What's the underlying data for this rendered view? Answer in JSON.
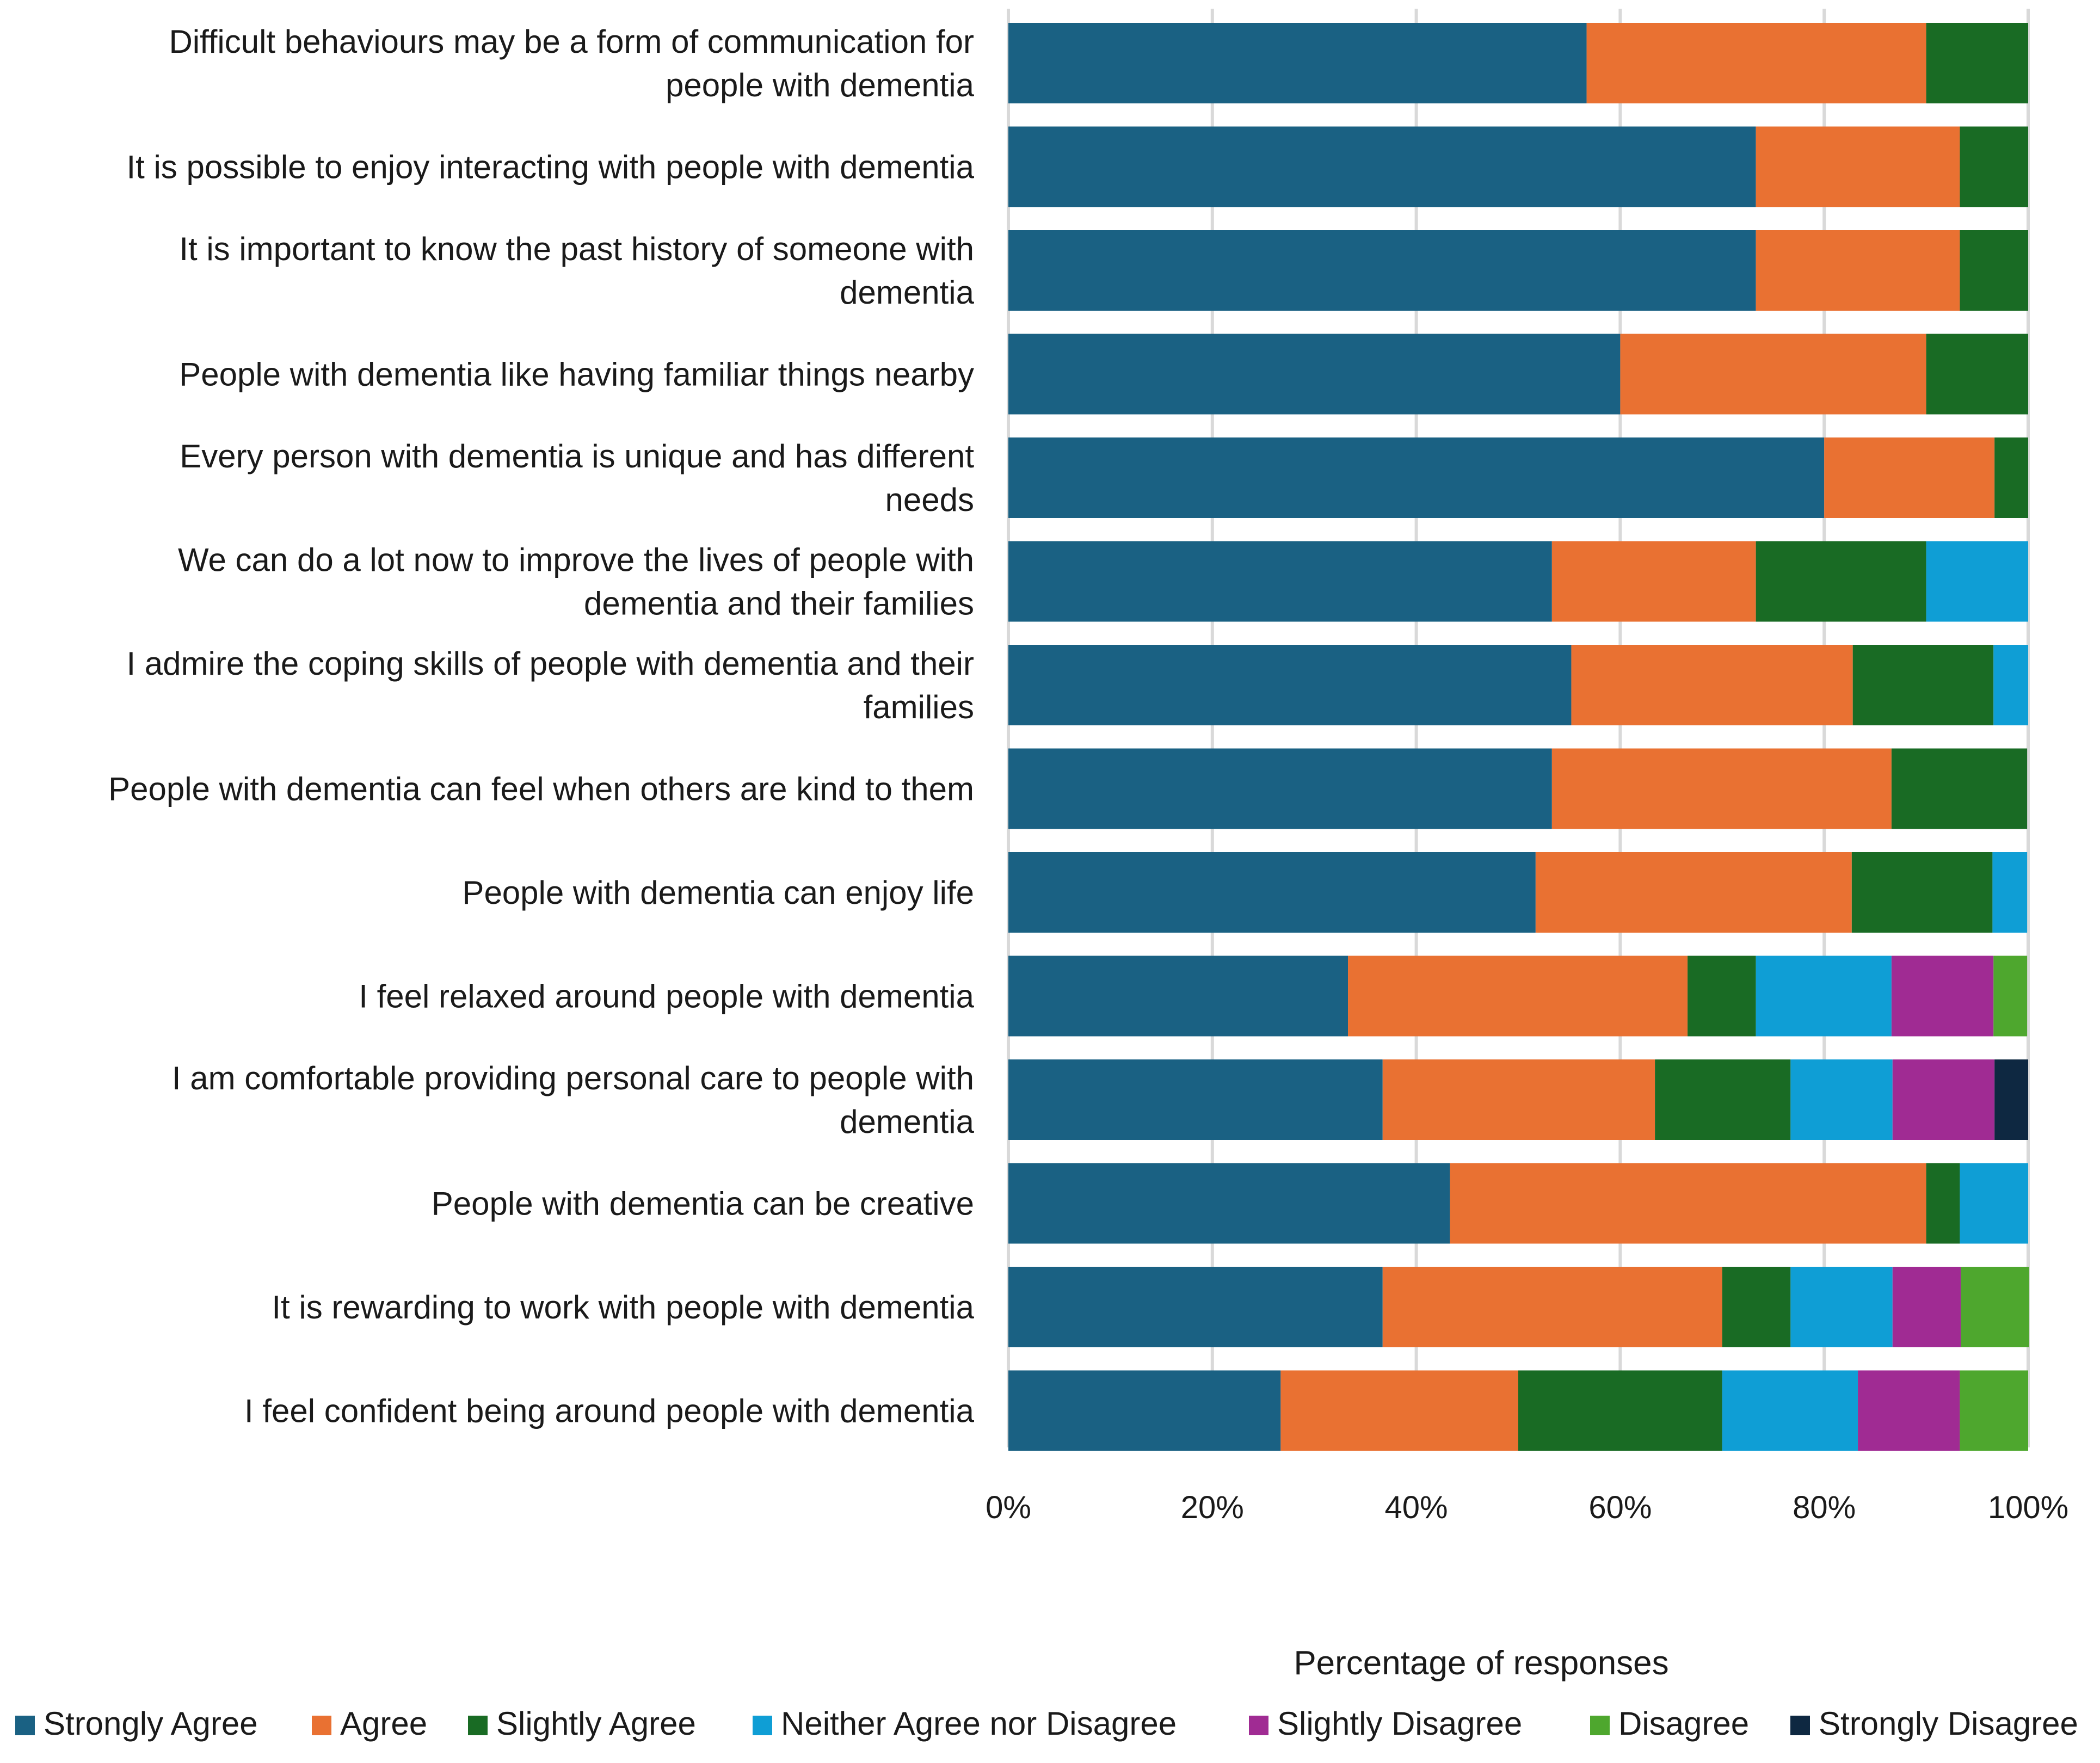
{
  "chart_data": {
    "type": "bar",
    "orientation": "horizontal",
    "stacked": true,
    "title": "",
    "xlabel": "Percentage of responses",
    "ylabel": "",
    "xlim": [
      0,
      100
    ],
    "x_ticks": [
      "0%",
      "20%",
      "40%",
      "60%",
      "80%",
      "100%"
    ],
    "grid": true,
    "legend_position": "bottom",
    "categories": [
      [
        "Difficult behaviours may be a form of communication for",
        "people with dementia"
      ],
      [
        "It is possible to enjoy interacting with people with dementia"
      ],
      [
        "It is important to know the past history of someone with",
        "dementia"
      ],
      [
        "People with dementia like having familiar things nearby"
      ],
      [
        "Every person with dementia is unique and has different",
        "needs"
      ],
      [
        "We can do a lot now to improve the lives of people with",
        "dementia and their families"
      ],
      [
        "I admire the coping skills of people with dementia and their",
        "families"
      ],
      [
        "People with dementia can feel when others are kind to them"
      ],
      [
        "People with dementia can enjoy life"
      ],
      [
        "I feel relaxed around people with dementia"
      ],
      [
        "I am comfortable providing personal care to people with",
        "dementia"
      ],
      [
        "People with dementia can be creative"
      ],
      [
        "It is rewarding to work with people with dementia"
      ],
      [
        "I feel confident being around people with dementia"
      ]
    ],
    "series": [
      {
        "name": "Strongly Agree",
        "color": "#1a6183",
        "values": [
          56.7,
          73.3,
          73.3,
          60.0,
          80.0,
          53.3,
          55.2,
          53.3,
          51.7,
          33.3,
          36.7,
          43.3,
          36.7,
          26.7
        ]
      },
      {
        "name": "Agree",
        "color": "#e97132",
        "values": [
          33.3,
          20.0,
          20.0,
          30.0,
          16.7,
          20.0,
          27.6,
          33.3,
          31.0,
          33.3,
          26.7,
          46.7,
          33.3,
          23.3
        ]
      },
      {
        "name": "Slightly Agree",
        "color": "#196b24",
        "values": [
          10.0,
          6.7,
          6.7,
          10.0,
          3.3,
          16.7,
          13.8,
          13.3,
          13.8,
          6.7,
          13.3,
          3.3,
          6.7,
          20.0
        ]
      },
      {
        "name": "Neither Agree nor Disagree",
        "color": "#0f9ed5",
        "values": [
          0,
          0,
          0,
          0,
          0,
          10.0,
          3.4,
          0,
          3.4,
          13.3,
          10.0,
          6.7,
          10.0,
          13.3
        ]
      },
      {
        "name": "Slightly Disagree",
        "color": "#a02b93",
        "values": [
          0,
          0,
          0,
          0,
          0,
          0,
          0,
          0,
          0,
          10.0,
          10.0,
          0,
          6.7,
          10.0
        ]
      },
      {
        "name": "Disagree",
        "color": "#4ea72e",
        "values": [
          0,
          0,
          0,
          0,
          0,
          0,
          0,
          0,
          0,
          3.3,
          0,
          0,
          6.7,
          6.7
        ]
      },
      {
        "name": "Strongly Disagree",
        "color": "#0e2841",
        "values": [
          0,
          0,
          0,
          0,
          0,
          0,
          0,
          0,
          0,
          0,
          3.3,
          0,
          0,
          0
        ]
      }
    ]
  }
}
